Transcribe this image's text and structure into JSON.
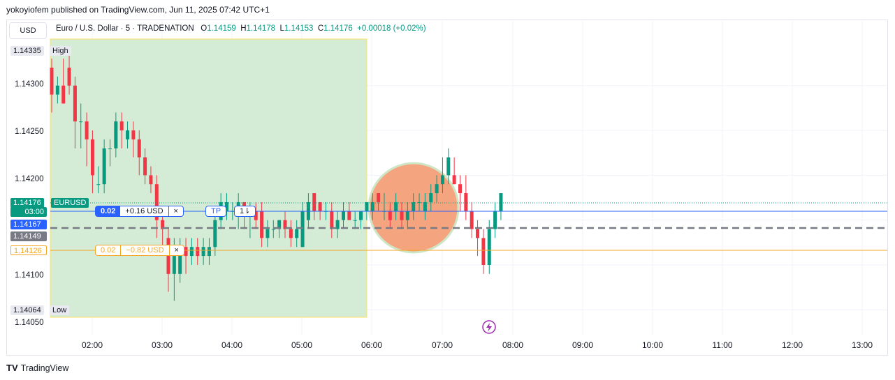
{
  "publisher": "yokoyiofem published on TradingView.com, Jun 11, 2025 07:42 UTC+1",
  "currency": "USD",
  "legend": {
    "symbol": "Euro / U.S. Dollar · 5 · TRADENATION",
    "o_label": "O",
    "o": "1.14159",
    "h_label": "H",
    "h": "1.14178",
    "l_label": "L",
    "l": "1.14153",
    "c_label": "C",
    "c": "1.14176",
    "change": "+0.00018 (+0.02%)"
  },
  "y_axis": {
    "ticks": [
      "1.14300",
      "1.14250",
      "1.14200",
      "1.14100",
      "1.14050"
    ]
  },
  "x_axis": {
    "ticks": [
      "02:00",
      "03:00",
      "04:00",
      "05:00",
      "06:00",
      "07:00",
      "08:00",
      "09:00",
      "10:00",
      "11:00",
      "12:00",
      "13:00"
    ]
  },
  "labels": {
    "high_price": "1.14335",
    "high_text": "High",
    "low_price": "1.14064",
    "low_text": "Low",
    "last_price": "1.14176",
    "symbol": "EURUSD",
    "countdown": "03:00",
    "position_price": "1.14167",
    "avg_price": "1.14149",
    "stop_price": "1.14126"
  },
  "trade": {
    "tp_qty": "0.02",
    "tp_pnl": "+0.16 USD",
    "tp_close": "×",
    "tp_tag": "TP",
    "tp_arrow": "1⇂",
    "sl_qty": "0.02",
    "sl_pnl": "−0.82 USD",
    "sl_close": "×"
  },
  "footer": {
    "brand": "TradingView",
    "logo": "TV"
  },
  "colors": {
    "up": "#089981",
    "down": "#f23645",
    "highlight": "#d4ecd6",
    "circle": "#f4a47f",
    "blue": "#2962ff",
    "orange": "#f5a623"
  },
  "icons": {
    "alert": "lightning-icon"
  },
  "chart_data": {
    "type": "candlestick",
    "title": "Euro / U.S. Dollar · 5 · TRADENATION",
    "xlabel": "",
    "ylabel": "",
    "ylim": [
      1.1403,
      1.14355
    ],
    "time_range": [
      "01:30",
      "07:40"
    ],
    "levels": {
      "last": 1.14176,
      "position": 1.14167,
      "avg": 1.14149,
      "stop": 1.14126,
      "high": 1.14335,
      "low": 1.14064
    },
    "ohlc": [
      [
        1.1432,
        1.1433,
        1.1427,
        1.1429
      ],
      [
        1.1429,
        1.1431,
        1.1428,
        1.143
      ],
      [
        1.143,
        1.1433,
        1.1428,
        1.1428
      ],
      [
        1.1432,
        1.1434,
        1.1429,
        1.143
      ],
      [
        1.143,
        1.1431,
        1.1423,
        1.1426
      ],
      [
        1.1426,
        1.1428,
        1.1423,
        1.1426
      ],
      [
        1.1426,
        1.1427,
        1.1421,
        1.1424
      ],
      [
        1.1424,
        1.1425,
        1.1418,
        1.142
      ],
      [
        1.1419,
        1.1421,
        1.1418,
        1.1419
      ],
      [
        1.1419,
        1.1424,
        1.1418,
        1.1423
      ],
      [
        1.1423,
        1.1424,
        1.1421,
        1.1423
      ],
      [
        1.1423,
        1.1427,
        1.1422,
        1.1426
      ],
      [
        1.1426,
        1.1427,
        1.1423,
        1.1425
      ],
      [
        1.1424,
        1.1426,
        1.1423,
        1.1425
      ],
      [
        1.1425,
        1.1426,
        1.1422,
        1.1424
      ],
      [
        1.1424,
        1.1425,
        1.142,
        1.1422
      ],
      [
        1.1422,
        1.1423,
        1.1419,
        1.142
      ],
      [
        1.142,
        1.1421,
        1.1418,
        1.1419
      ],
      [
        1.1419,
        1.142,
        1.1413,
        1.1415
      ],
      [
        1.1415,
        1.1416,
        1.1412,
        1.1414
      ],
      [
        1.1413,
        1.1414,
        1.1407,
        1.1409
      ],
      [
        1.1409,
        1.1413,
        1.1406,
        1.1411
      ],
      [
        1.1409,
        1.1413,
        1.1408,
        1.1412
      ],
      [
        1.1412,
        1.1413,
        1.1409,
        1.1411
      ],
      [
        1.1411,
        1.1413,
        1.141,
        1.1412
      ],
      [
        1.1412,
        1.1413,
        1.141,
        1.1411
      ],
      [
        1.1411,
        1.1413,
        1.141,
        1.1412
      ],
      [
        1.1411,
        1.1413,
        1.141,
        1.1412
      ],
      [
        1.1412,
        1.1416,
        1.1411,
        1.1415
      ],
      [
        1.1415,
        1.1418,
        1.1414,
        1.1417
      ],
      [
        1.1416,
        1.1418,
        1.1415,
        1.1417
      ],
      [
        1.1416,
        1.1417,
        1.1415,
        1.1416
      ],
      [
        1.1416,
        1.1418,
        1.1414,
        1.1417
      ],
      [
        1.1417,
        1.1417,
        1.1414,
        1.1416
      ],
      [
        1.1416,
        1.1417,
        1.1413,
        1.1416
      ],
      [
        1.1416,
        1.1417,
        1.1414,
        1.1415
      ],
      [
        1.1416,
        1.1417,
        1.1412,
        1.1413
      ],
      [
        1.1413,
        1.1415,
        1.1412,
        1.1414
      ],
      [
        1.1414,
        1.1415,
        1.1413,
        1.1414
      ],
      [
        1.1414,
        1.1415,
        1.1413,
        1.1415
      ],
      [
        1.1415,
        1.1416,
        1.1413,
        1.1414
      ],
      [
        1.1414,
        1.1415,
        1.1412,
        1.1413
      ],
      [
        1.1413,
        1.1415,
        1.1412,
        1.1414
      ],
      [
        1.1412,
        1.1417,
        1.1412,
        1.1416
      ],
      [
        1.1415,
        1.1418,
        1.1414,
        1.1417
      ],
      [
        1.1418,
        1.1418,
        1.1415,
        1.1416
      ],
      [
        1.1417,
        1.1417,
        1.1415,
        1.1416
      ],
      [
        1.1416,
        1.1417,
        1.1415,
        1.1416
      ],
      [
        1.1416,
        1.1417,
        1.1413,
        1.1414
      ],
      [
        1.1414,
        1.1416,
        1.1413,
        1.1415
      ],
      [
        1.1415,
        1.1417,
        1.1414,
        1.1416
      ],
      [
        1.1416,
        1.1417,
        1.1415,
        1.1415
      ],
      [
        1.1415,
        1.1416,
        1.1414,
        1.1415
      ],
      [
        1.1415,
        1.1416,
        1.1414,
        1.1416
      ],
      [
        1.1416,
        1.1417,
        1.1415,
        1.1417
      ],
      [
        1.1416,
        1.1418,
        1.1415,
        1.1417
      ],
      [
        1.1418,
        1.1418,
        1.1416,
        1.1417
      ],
      [
        1.1416,
        1.1418,
        1.1415,
        1.1416
      ],
      [
        1.1416,
        1.1417,
        1.1414,
        1.1415
      ],
      [
        1.1416,
        1.1418,
        1.1415,
        1.1417
      ],
      [
        1.1416,
        1.1417,
        1.1414,
        1.1415
      ],
      [
        1.1415,
        1.1417,
        1.1414,
        1.1416
      ],
      [
        1.1416,
        1.1418,
        1.1415,
        1.1417
      ],
      [
        1.1417,
        1.1418,
        1.1416,
        1.1417
      ],
      [
        1.1416,
        1.1418,
        1.1415,
        1.1417
      ],
      [
        1.1417,
        1.1419,
        1.1416,
        1.1418
      ],
      [
        1.1418,
        1.142,
        1.1417,
        1.1419
      ],
      [
        1.1419,
        1.1422,
        1.1418,
        1.142
      ],
      [
        1.142,
        1.1423,
        1.1419,
        1.1422
      ],
      [
        1.142,
        1.1422,
        1.1419,
        1.1419
      ],
      [
        1.1419,
        1.142,
        1.1416,
        1.1418
      ],
      [
        1.1418,
        1.142,
        1.1415,
        1.1416
      ],
      [
        1.1416,
        1.1417,
        1.1413,
        1.1414
      ],
      [
        1.1414,
        1.1415,
        1.1411,
        1.1413
      ],
      [
        1.1413,
        1.1414,
        1.1409,
        1.141
      ],
      [
        1.141,
        1.1415,
        1.1409,
        1.1414
      ],
      [
        1.1414,
        1.1417,
        1.1413,
        1.1416
      ],
      [
        1.1416,
        1.1418,
        1.1415,
        1.1418
      ]
    ]
  }
}
